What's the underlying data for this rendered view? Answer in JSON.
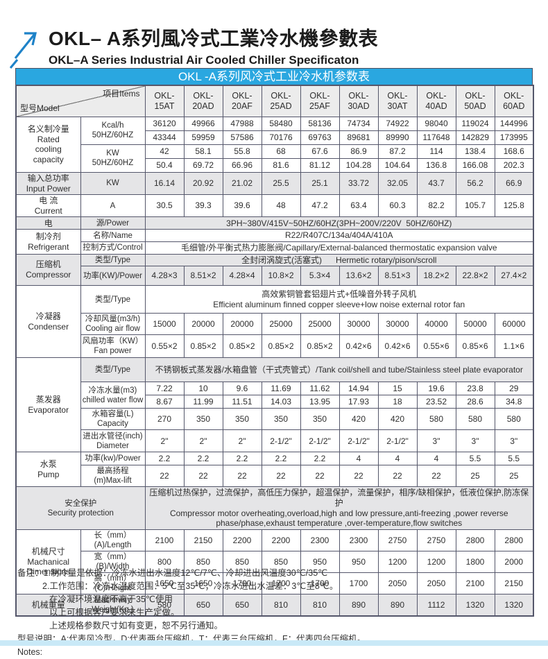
{
  "page_title": {
    "zh": "OKL– A系列風冷式工業冷水機參數表",
    "en": "OKL–A Series Industrial Air Cooled Chiller Specificaton"
  },
  "logo": {
    "icon": "arrow-up-right-icon",
    "color": "#1e82c8"
  },
  "colors": {
    "table_title_bg": "#2aa7e0",
    "table_title_text": "#ffffff",
    "row_shade": "#e5e5e7",
    "header_shade": "#ececec",
    "border": "#54566a",
    "bottom_bar": "#c9e9f7"
  },
  "table": {
    "title": "OKL -A系列风冷式工业冷水机参数表",
    "corner": {
      "model_label": "型号Model",
      "items_label": "项目Items"
    },
    "models": [
      "OKL-\n15AT",
      "OKL-\n20AD",
      "OKL-\n20AF",
      "OKL-\n25AD",
      "OKL-\n25AF",
      "OKL-\n30AD",
      "OKL-\n30AT",
      "OKL-\n40AD",
      "OKL-\n50AD",
      "OKL-\n60AD"
    ],
    "rows": [
      {
        "key": "kcal-50",
        "group": "名义制冷量\nRated\ncooling\ncapacity",
        "group_rowspan": 4,
        "label": "Kcal/h\n50HZ/60HZ",
        "label_rowspan": 2,
        "values": [
          "36120",
          "49966",
          "47988",
          "58480",
          "58136",
          "74734",
          "74922",
          "98040",
          "119024",
          "144996"
        ]
      },
      {
        "key": "kcal-60",
        "values": [
          "43344",
          "59959",
          "57586",
          "70176",
          "69763",
          "89681",
          "89990",
          "117648",
          "142829",
          "173995"
        ]
      },
      {
        "key": "kw-50",
        "label": "KW\n50HZ/60HZ",
        "label_rowspan": 2,
        "values": [
          "42",
          "58.1",
          "55.8",
          "68",
          "67.6",
          "86.9",
          "87.2",
          "114",
          "138.4",
          "168.6"
        ]
      },
      {
        "key": "kw-60",
        "values": [
          "50.4",
          "69.72",
          "66.96",
          "81.6",
          "81.12",
          "104.28",
          "104.64",
          "136.8",
          "166.08",
          "202.3"
        ]
      },
      {
        "key": "input-power",
        "group": "输入总功率\nInput Power",
        "label": "KW",
        "shaded": true,
        "values": [
          "16.14",
          "20.92",
          "21.02",
          "25.5",
          "25.1",
          "33.72",
          "32.05",
          "43.7",
          "56.2",
          "66.9"
        ]
      },
      {
        "key": "current",
        "group": "电 流\nCurrent",
        "label": "A",
        "values": [
          "30.5",
          "39.3",
          "39.6",
          "48",
          "47.2",
          "63.4",
          "60.3",
          "82.2",
          "105.7",
          "125.8"
        ]
      },
      {
        "key": "power-supply",
        "group": "电",
        "label": "源/Power",
        "shaded": true,
        "text": "3PH~380V/415V~50HZ/60HZ(3PH~200V/220V  50HZ/60HZ)"
      },
      {
        "key": "refrigerant-name",
        "group": "制冷剂\nRefrigerant",
        "group_rowspan": 2,
        "label": "名称/Name",
        "text": "R22/R407C/134a/404A/410A"
      },
      {
        "key": "refrigerant-control",
        "label": "控制方式/Control",
        "text": "毛细管/外平衡式热力膨胀阀/Capillary/External-balanced thermostatic expansion valve"
      },
      {
        "key": "compressor-type",
        "group": "压缩机\nCompressor",
        "group_rowspan": 2,
        "label": "类型/Type",
        "shaded": true,
        "text": "全封闭涡旋式(活塞式)      Hermetic rotary/pison/scroll"
      },
      {
        "key": "compressor-power",
        "label": "功率(KW)/Power",
        "shaded": true,
        "values": [
          "4.28×3",
          "8.51×2",
          "4.28×4",
          "10.8×2",
          "5.3×4",
          "13.6×2",
          "8.51×3",
          "18.2×2",
          "22.8×2",
          "27.4×2"
        ]
      },
      {
        "key": "condenser-type",
        "group": "冷凝器\nCondenser",
        "group_rowspan": 3,
        "label": "类型/Type",
        "text": "高效紫铜管套铝翅片式+低噪音外转子风机\nEfficient aluminum finned copper sleeve+low noise external rotor fan"
      },
      {
        "key": "cooling-air-flow",
        "label": "冷却风量(m3/h)\nCooling air flow",
        "values": [
          "15000",
          "20000",
          "20000",
          "25000",
          "25000",
          "30000",
          "30000",
          "40000",
          "50000",
          "60000"
        ]
      },
      {
        "key": "fan-power",
        "label": "风扇功率（KW）\nFan power",
        "values": [
          "0.55×2",
          "0.85×2",
          "0.85×2",
          "0.85×2",
          "0.85×2",
          "0.42×6",
          "0.42×6",
          "0.55×6",
          "0.85×6",
          "1.1×6"
        ]
      },
      {
        "key": "evaporator-type",
        "group": "蒸发器\nEvaporator",
        "group_rowspan": 5,
        "group_unshaded": true,
        "label": "类型/Type",
        "shaded": true,
        "text": "不锈钢板式蒸发器/水箱盘管（干式壳管式）/Tank coil/shell and tube/Stainless steel plate evaporator"
      },
      {
        "key": "chilled-water-50",
        "label": "冷冻水量(m3)\nchilled water flow",
        "label_rowspan": 2,
        "values": [
          "7.22",
          "10",
          "9.6",
          "11.69",
          "11.62",
          "14.94",
          "15",
          "19.6",
          "23.8",
          "29"
        ]
      },
      {
        "key": "chilled-water-60",
        "values": [
          "8.67",
          "11.99",
          "11.51",
          "14.03",
          "13.95",
          "17.93",
          "18",
          "23.52",
          "28.6",
          "34.8"
        ]
      },
      {
        "key": "tank-capacity",
        "label": "水箱容量(L)\nCapacity",
        "values": [
          "270",
          "350",
          "350",
          "350",
          "350",
          "420",
          "420",
          "580",
          "580",
          "580"
        ]
      },
      {
        "key": "pipe-diameter",
        "label": "进出水管径(inch)\nDiameter",
        "values": [
          "2\"",
          "2\"",
          "2\"",
          "2-1/2\"",
          "2-1/2\"",
          "2-1/2\"",
          "2-1/2\"",
          "3\"",
          "3\"",
          "3\""
        ]
      },
      {
        "key": "pump-power",
        "group": "水泵\nPump",
        "group_rowspan": 2,
        "label": "功率(kw)/Power",
        "values": [
          "2.2",
          "2.2",
          "2.2",
          "2.2",
          "2.2",
          "4",
          "4",
          "4",
          "5.5",
          "5.5"
        ]
      },
      {
        "key": "max-lift",
        "label": "最高扬程(m)Max-lift",
        "values": [
          "22",
          "22",
          "22",
          "22",
          "22",
          "22",
          "22",
          "22",
          "25",
          "25"
        ]
      },
      {
        "key": "security-protection",
        "label": "安全保护\nSecurity protection",
        "label_colspan": 2,
        "shaded": true,
        "text": "压缩机过热保护，过流保护，高低压力保护，超温保护，流量保护，相序/缺相保护，低液位保护,防冻保护\nCompressor motor overheating,overload,high and low pressure,anti-freezing ,power reverse\nphase/phase,exhaust temperature ,over-temperature,flow switches"
      },
      {
        "key": "dim-length",
        "group": "机械尺寸\nMachanical\nDimensions",
        "group_rowspan": 3,
        "label": "长（mm）(A)/Length",
        "values": [
          "2100",
          "2150",
          "2200",
          "2200",
          "2300",
          "2300",
          "2750",
          "2750",
          "2800",
          "2800"
        ]
      },
      {
        "key": "dim-width",
        "label": "宽（mm）(B)/Width",
        "values": [
          "800",
          "850",
          "850",
          "850",
          "950",
          "950",
          "1200",
          "1200",
          "1800",
          "2000"
        ]
      },
      {
        "key": "dim-height",
        "label": "高（mm）(C)/Height",
        "values": [
          "1650",
          "1650",
          "1700",
          "1700",
          "1700",
          "1700",
          "2050",
          "2050",
          "2100",
          "2150"
        ]
      },
      {
        "key": "machine-weight",
        "group": "机械重量",
        "label": "Machinery\nWeight(Kg )",
        "shaded": true,
        "values": [
          "580",
          "650",
          "650",
          "810",
          "810",
          "890",
          "890",
          "1112",
          "1320",
          "1320"
        ]
      }
    ]
  },
  "notes": {
    "lines": [
      {
        "text": "备注：1.制冷量是依据：冷冻水进出水温度12℃/7℃、冷却进出风温度30℃/35℃",
        "indent": 0
      },
      {
        "text": "2.工作范围：冷冻水温度范围：5℃至35℃；冷冻水进出水温差：3℃至8℃。",
        "indent": 1
      },
      {
        "text": "在冷凝环境温度不高于35℃使用",
        "indent": 2
      },
      {
        "text": "以上可根据客户要求来生产定做。",
        "indent": 2
      },
      {
        "text": "上述规格参数尺寸如有变更，恕不另行通知。",
        "indent": 2
      },
      {
        "text": "型号说明：A:代表风冷型，D:代表两台压缩机，T：代表三台压缩机，F：代表四台压缩机。",
        "indent": 0
      },
      {
        "text": "Notes:",
        "indent": 0
      }
    ]
  }
}
